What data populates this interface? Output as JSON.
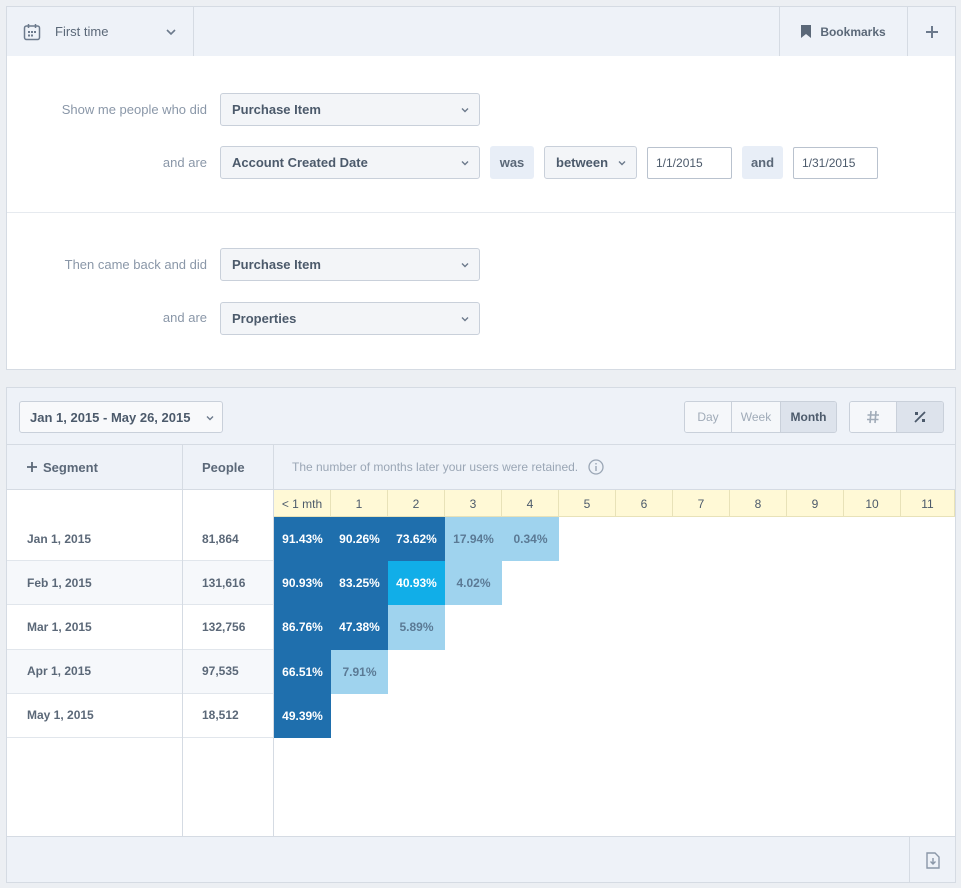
{
  "topbar": {
    "date_mode": "First time",
    "bookmarks_label": "Bookmarks"
  },
  "query": {
    "first": {
      "label": "Show me people who did",
      "event": "Purchase Item",
      "and_are_label": "and are",
      "property": "Account Created Date",
      "was_label": "was",
      "operator": "between",
      "start_value": "1/1/2015",
      "and_label": "and",
      "end_value": "1/31/2015"
    },
    "second": {
      "label": "Then came back and did",
      "event": "Purchase Item",
      "and_are_label": "and are",
      "property": "Properties"
    }
  },
  "results": {
    "date_range": "Jan 1, 2015 - May 26, 2015",
    "granularity": [
      "Day",
      "Week",
      "Month"
    ],
    "granularity_selected": "Month",
    "display_modes": [
      "number-sign-icon",
      "percent-icon"
    ],
    "display_selected": "percent-icon",
    "segment_label": "Segment",
    "people_label": "People",
    "hint": "The number of months later your users were retained.",
    "months": [
      "< 1 mth",
      "1",
      "2",
      "3",
      "4",
      "5",
      "6",
      "7",
      "8",
      "9",
      "10",
      "11"
    ],
    "rows": [
      {
        "label": "Jan 1, 2015",
        "people": "81,864",
        "values": [
          "91.43%",
          "90.26%",
          "73.62%",
          "17.94%",
          "0.34%"
        ],
        "pct": [
          91.43,
          90.26,
          73.62,
          17.94,
          0.34
        ]
      },
      {
        "label": "Feb 1, 2015",
        "people": "131,616",
        "values": [
          "90.93%",
          "83.25%",
          "40.93%",
          "4.02%"
        ],
        "pct": [
          90.93,
          83.25,
          40.93,
          4.02
        ]
      },
      {
        "label": "Mar 1, 2015",
        "people": "132,756",
        "values": [
          "86.76%",
          "47.38%",
          "5.89%"
        ],
        "pct": [
          86.76,
          47.38,
          5.89
        ]
      },
      {
        "label": "Apr 1, 2015",
        "people": "97,535",
        "values": [
          "66.51%",
          "7.91%"
        ],
        "pct": [
          66.51,
          7.91
        ]
      },
      {
        "label": "May 1, 2015",
        "people": "18,512",
        "values": [
          "49.39%"
        ],
        "pct": [
          49.39
        ]
      }
    ],
    "colors": {
      "dark": "#1f6fad",
      "bright": "#11aee8",
      "light": "#9fd3ee",
      "light_text": "#5b7a95"
    }
  }
}
